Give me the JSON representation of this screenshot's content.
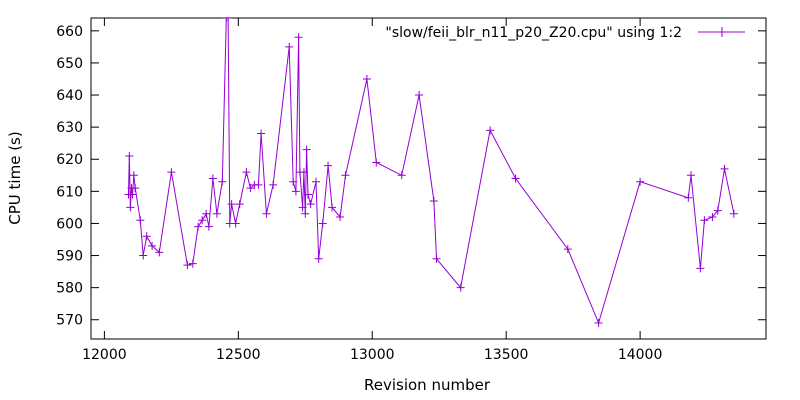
{
  "chart_data": {
    "type": "line",
    "xlabel": "Revision number",
    "ylabel": "CPU time (s)",
    "xlim": [
      11950,
      14470
    ],
    "ylim": [
      564,
      664
    ],
    "xticks": [
      12000,
      12500,
      13000,
      13500,
      14000
    ],
    "yticks": [
      570,
      580,
      590,
      600,
      610,
      620,
      630,
      640,
      650,
      660
    ],
    "grid": false,
    "legend_position": "top-right",
    "series": [
      {
        "name": "\"slow/feii_blr_n11_p20_Z20.cpu\" using 1:2",
        "color": "#9400d3",
        "marker": "plus",
        "points": [
          [
            12090,
            609
          ],
          [
            12093,
            621
          ],
          [
            12097,
            605
          ],
          [
            12101,
            611
          ],
          [
            12105,
            609
          ],
          [
            12110,
            615
          ],
          [
            12115,
            611
          ],
          [
            12134,
            601
          ],
          [
            12145,
            590
          ],
          [
            12158,
            596
          ],
          [
            12178,
            593
          ],
          [
            12205,
            591
          ],
          [
            12250,
            616
          ],
          [
            12310,
            587
          ],
          [
            12330,
            587.5
          ],
          [
            12350,
            599
          ],
          [
            12365,
            601
          ],
          [
            12380,
            603
          ],
          [
            12390,
            599
          ],
          [
            12405,
            614
          ],
          [
            12420,
            603
          ],
          [
            12440,
            613
          ],
          [
            12455,
            664
          ],
          [
            12462,
            664
          ],
          [
            12468,
            600
          ],
          [
            12475,
            606
          ],
          [
            12490,
            600
          ],
          [
            12505,
            606
          ],
          [
            12530,
            616
          ],
          [
            12545,
            611
          ],
          [
            12560,
            612
          ],
          [
            12575,
            612
          ],
          [
            12585,
            628
          ],
          [
            12605,
            603
          ],
          [
            12630,
            612
          ],
          [
            12690,
            655
          ],
          [
            12705,
            613
          ],
          [
            12715,
            610
          ],
          [
            12725,
            658
          ],
          [
            12730,
            616
          ],
          [
            12740,
            605
          ],
          [
            12745,
            616
          ],
          [
            12750,
            603
          ],
          [
            12755,
            623
          ],
          [
            12760,
            609
          ],
          [
            12770,
            606
          ],
          [
            12790,
            613
          ],
          [
            12800,
            589
          ],
          [
            12815,
            600
          ],
          [
            12835,
            618
          ],
          [
            12850,
            605
          ],
          [
            12880,
            602
          ],
          [
            12900,
            615
          ],
          [
            12980,
            645
          ],
          [
            13015,
            619
          ],
          [
            13110,
            615
          ],
          [
            13175,
            640
          ],
          [
            13230,
            607
          ],
          [
            13240,
            589
          ],
          [
            13330,
            580
          ],
          [
            13440,
            629
          ],
          [
            13535,
            614
          ],
          [
            13730,
            592
          ],
          [
            13845,
            569
          ],
          [
            14000,
            613
          ],
          [
            14180,
            608
          ],
          [
            14190,
            615
          ],
          [
            14225,
            586
          ],
          [
            14240,
            601
          ],
          [
            14270,
            602
          ],
          [
            14290,
            604
          ],
          [
            14315,
            617
          ],
          [
            14350,
            603
          ]
        ]
      }
    ]
  }
}
